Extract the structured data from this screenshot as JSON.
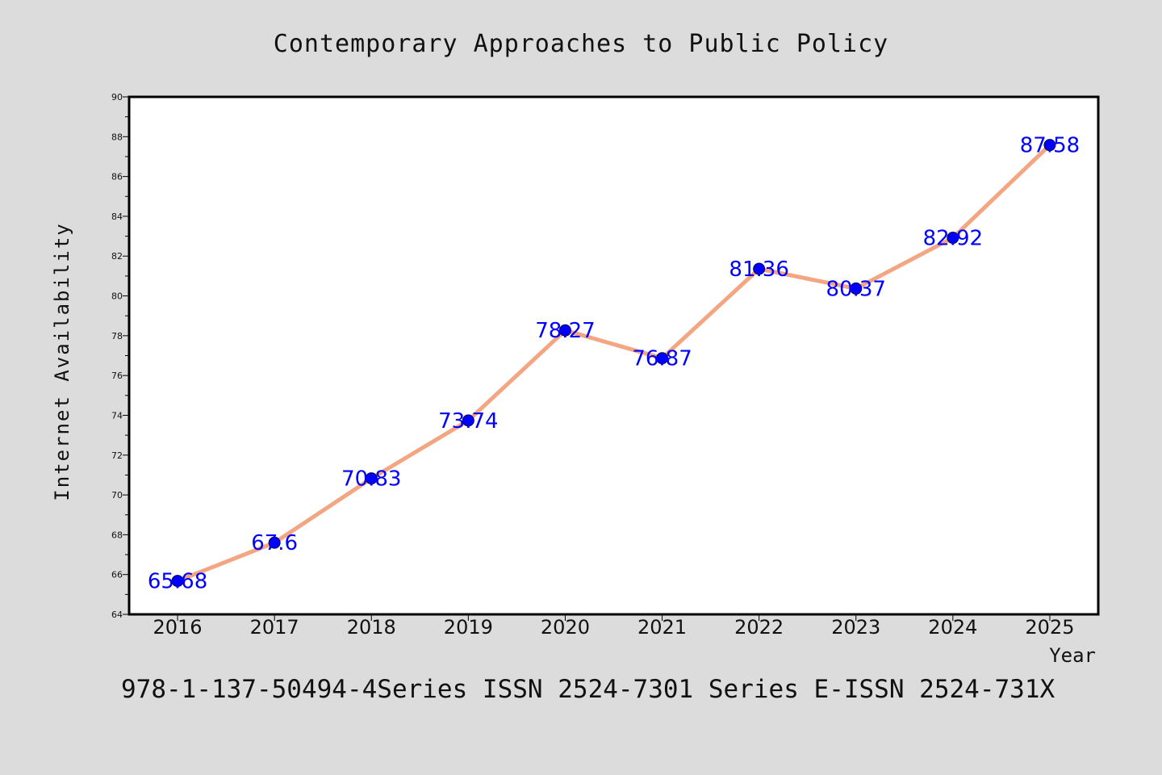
{
  "chart_data": {
    "type": "line",
    "title": "Contemporary Approaches to Public Policy",
    "xlabel": "Year",
    "ylabel": "Internet Availability",
    "categories": [
      "2016",
      "2017",
      "2018",
      "2019",
      "2020",
      "2021",
      "2022",
      "2023",
      "2024",
      "2025"
    ],
    "values": [
      65.68,
      67.6,
      70.83,
      73.74,
      78.27,
      76.87,
      81.36,
      80.37,
      82.92,
      87.58
    ],
    "value_labels": [
      "65.68",
      "67.6",
      "70.83",
      "73.74",
      "78.27",
      "76.87",
      "81.36",
      "80.37",
      "82.92",
      "87.58"
    ],
    "ylim": [
      64,
      90
    ],
    "yticks": [
      "64",
      "66",
      "68",
      "70",
      "72",
      "74",
      "76",
      "78",
      "80",
      "82",
      "84",
      "86",
      "88",
      "90"
    ],
    "grid": false,
    "legend": "none",
    "line_color": "#f4a582",
    "marker_color": "#0000ff",
    "label_color": "#0000ff"
  },
  "footer": "978-1-137-50494-4Series ISSN 2524-7301 Series E-ISSN 2524-731X",
  "colors": {
    "background": "#dcdcdc",
    "plot_background": "#ffffff"
  }
}
